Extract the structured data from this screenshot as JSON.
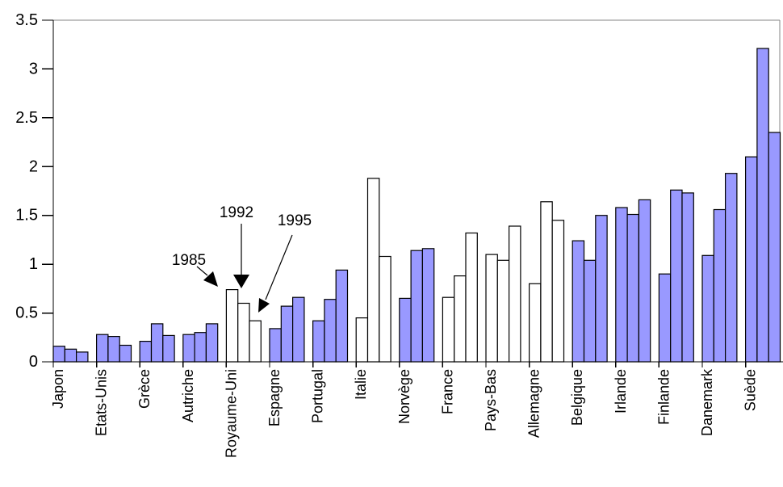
{
  "chart_data": {
    "type": "bar",
    "title": "",
    "xlabel": "",
    "ylabel": "",
    "ylim": [
      0,
      3.5
    ],
    "yticks": [
      0,
      0.5,
      1,
      1.5,
      2,
      2.5,
      3,
      3.5
    ],
    "ytick_labels": [
      "0",
      "0.5",
      "1",
      "1.5",
      "2",
      "2.5",
      "3",
      "3.5"
    ],
    "grid": false,
    "legend_position": "none",
    "bar_group_layout": "3 bars per category (1985, 1992, 1995), left-aligned in category slot",
    "categories": [
      "Japon",
      "Etats-Unis",
      "Grèce",
      "Autriche",
      "Royaume-Uni",
      "Espagne",
      "Portugal",
      "Italie",
      "Norvège",
      "France",
      "Pays-Bas",
      "Allemagne",
      "Belgique",
      "Irlande",
      "Finlande",
      "Danemark",
      "Suède"
    ],
    "series": [
      {
        "name": "1985",
        "values": [
          0.16,
          0.28,
          0.21,
          0.28,
          0.74,
          0.34,
          0.42,
          0.45,
          0.65,
          0.66,
          1.1,
          0.8,
          1.24,
          1.58,
          0.9,
          1.09,
          2.1
        ]
      },
      {
        "name": "1992",
        "values": [
          0.13,
          0.26,
          0.39,
          0.3,
          0.6,
          0.57,
          0.64,
          1.88,
          1.14,
          0.88,
          1.04,
          1.64,
          1.04,
          1.51,
          1.76,
          1.56,
          3.21
        ]
      },
      {
        "name": "1995",
        "values": [
          0.1,
          0.17,
          0.27,
          0.39,
          0.42,
          0.66,
          0.94,
          1.08,
          1.16,
          1.32,
          1.39,
          1.45,
          1.5,
          1.66,
          1.73,
          1.93,
          2.35
        ]
      }
    ],
    "category_fill": [
      "blue",
      "blue",
      "blue",
      "blue",
      "white",
      "blue",
      "blue",
      "white",
      "blue",
      "white",
      "white",
      "white",
      "blue",
      "blue",
      "blue",
      "blue",
      "blue"
    ],
    "annotations": [
      {
        "text": "1985",
        "target_category": "Royaume-Uni",
        "target_series": "1985"
      },
      {
        "text": "1992",
        "target_category": "Royaume-Uni",
        "target_series": "1992"
      },
      {
        "text": "1995",
        "target_category": "Royaume-Uni",
        "target_series": "1995"
      }
    ],
    "colors": {
      "bar_blue": "#9999ff",
      "bar_white": "#ffffff",
      "bar_border": "#000000",
      "axis": "#000000",
      "plot_border": "#848484",
      "text": "#000000",
      "background": "#ffffff"
    }
  }
}
